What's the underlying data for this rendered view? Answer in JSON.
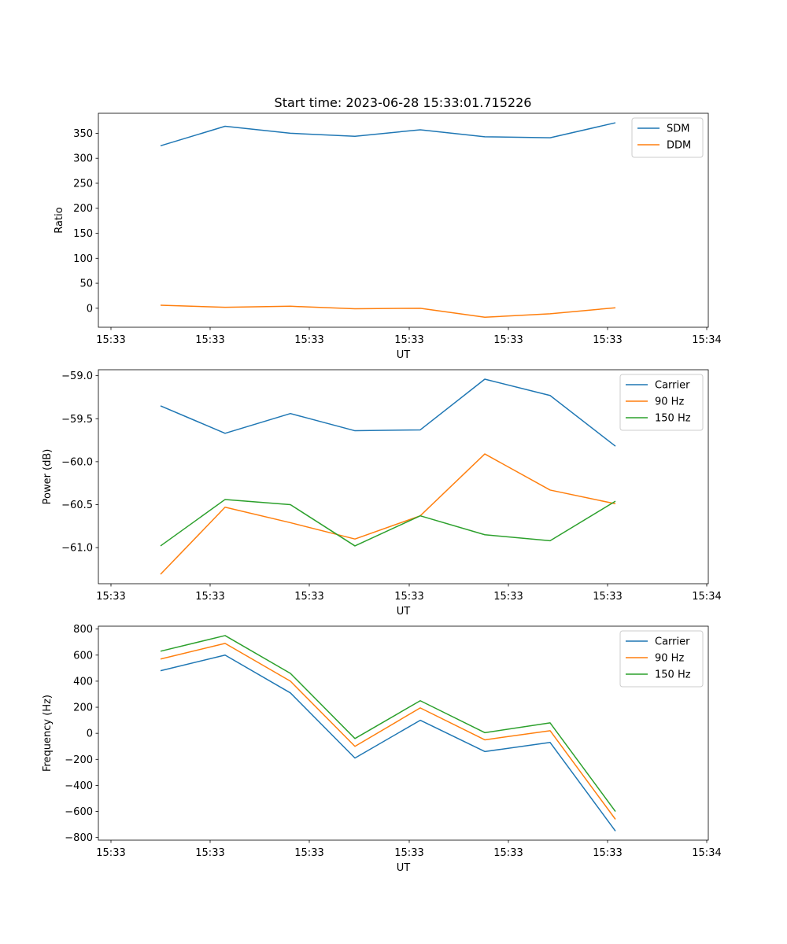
{
  "figure": {
    "title": "Start time: 2023-06-28 15:33:01.715226"
  },
  "chart_data": [
    {
      "type": "line",
      "xlabel": "UT",
      "ylabel": "Ratio",
      "x_tick_labels": [
        "15:33",
        "15:33",
        "15:33",
        "15:33",
        "15:33",
        "15:33",
        "15:33"
      ],
      "x_last_tick_label": "15:34",
      "y_ticks": [
        0,
        50,
        100,
        150,
        200,
        250,
        300,
        350
      ],
      "ylim": [
        -38,
        390
      ],
      "legend_position": "upper right",
      "series": [
        {
          "name": "SDM",
          "color": "#1f77b4",
          "values": [
            325,
            364,
            350,
            344,
            357,
            343,
            341,
            371
          ]
        },
        {
          "name": "DDM",
          "color": "#ff7f0e",
          "values": [
            6,
            2,
            4,
            -1,
            0,
            -18,
            -11,
            1
          ]
        }
      ]
    },
    {
      "type": "line",
      "xlabel": "UT",
      "ylabel": "Power (dB)",
      "x_tick_labels": [
        "15:33",
        "15:33",
        "15:33",
        "15:33",
        "15:33",
        "15:33",
        "15:33"
      ],
      "x_last_tick_label": "15:34",
      "y_ticks": [
        -61.0,
        -60.5,
        -60.0,
        -59.5,
        -59.0
      ],
      "y_tick_labels": [
        "−61.0",
        "−60.5",
        "−60.0",
        "−59.5",
        "−59.0"
      ],
      "ylim": [
        -61.42,
        -58.93
      ],
      "legend_position": "upper right",
      "series": [
        {
          "name": "Carrier",
          "color": "#1f77b4",
          "values": [
            -59.35,
            -59.67,
            -59.44,
            -59.64,
            -59.63,
            -59.04,
            -59.23,
            -59.82
          ]
        },
        {
          "name": "90 Hz",
          "color": "#ff7f0e",
          "values": [
            -61.31,
            -60.53,
            -60.71,
            -60.9,
            -60.63,
            -59.91,
            -60.33,
            -60.49
          ]
        },
        {
          "name": "150 Hz",
          "color": "#2ca02c",
          "values": [
            -60.98,
            -60.44,
            -60.5,
            -60.98,
            -60.63,
            -60.85,
            -60.92,
            -60.46
          ]
        }
      ]
    },
    {
      "type": "line",
      "xlabel": "UT",
      "ylabel": "Frequency (Hz)",
      "x_tick_labels": [
        "15:33",
        "15:33",
        "15:33",
        "15:33",
        "15:33",
        "15:33",
        "15:33"
      ],
      "x_last_tick_label": "15:34",
      "y_ticks": [
        -800,
        -600,
        -400,
        -200,
        0,
        200,
        400,
        600,
        800
      ],
      "y_tick_labels": [
        "−800",
        "−600",
        "−400",
        "−200",
        "0",
        "200",
        "400",
        "600",
        "800"
      ],
      "ylim": [
        -820,
        822
      ],
      "legend_position": "upper right",
      "series": [
        {
          "name": "Carrier",
          "color": "#1f77b4",
          "values": [
            480,
            600,
            310,
            -190,
            100,
            -140,
            -70,
            -750
          ]
        },
        {
          "name": "90 Hz",
          "color": "#ff7f0e",
          "values": [
            570,
            690,
            400,
            -100,
            195,
            -50,
            20,
            -660
          ]
        },
        {
          "name": "150 Hz",
          "color": "#2ca02c",
          "values": [
            630,
            750,
            460,
            -40,
            250,
            5,
            80,
            -600
          ]
        }
      ]
    }
  ]
}
